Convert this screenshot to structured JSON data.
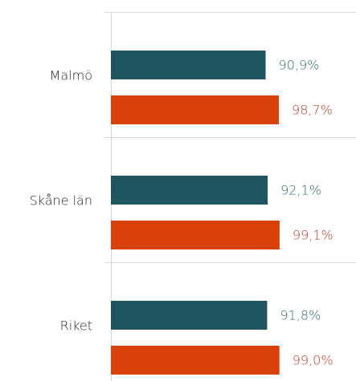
{
  "chart_data": {
    "type": "hbar",
    "categories": [
      "Malmö",
      "Skåne län",
      "Riket"
    ],
    "series": [
      {
        "color": "#1f555e",
        "label_color": "#2e6670",
        "values": [
          90.9,
          92.1,
          91.8
        ],
        "value_labels": [
          "90,9%",
          "92,1%",
          "91,8%"
        ]
      },
      {
        "color": "#d9400a",
        "label_color": "#c0392b",
        "values": [
          98.7,
          99.1,
          99.0
        ],
        "value_labels": [
          "98,7%",
          "99,1%",
          "99,0%"
        ]
      }
    ],
    "xlim": [
      0,
      144
    ]
  }
}
